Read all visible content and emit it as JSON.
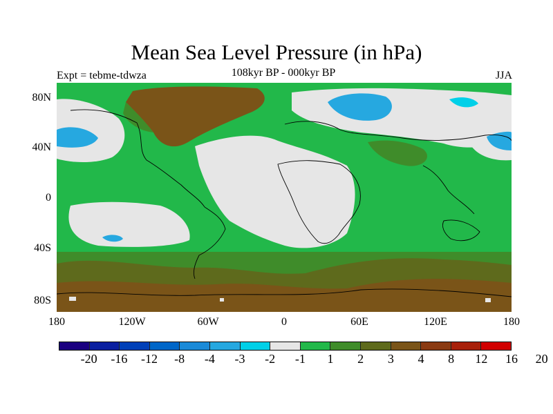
{
  "figure": {
    "title": "Mean Sea Level Pressure (in hPa)",
    "left_label": "Expt = tebme-tdwza",
    "center_label": "108kyr BP - 000kyr BP",
    "right_label": "JJA"
  },
  "axes": {
    "lat_labels": [
      "80N",
      "40N",
      "0",
      "40S",
      "80S"
    ],
    "lon_labels": [
      "180",
      "120W",
      "60W",
      "0",
      "60E",
      "120E",
      "180"
    ]
  },
  "colorbar": {
    "colors": [
      "#1a0080",
      "#0a1fa0",
      "#0040b8",
      "#0066c8",
      "#1a8ad8",
      "#26a8e0",
      "#00d0e8",
      "#e6e6e6",
      "#22b84a",
      "#3f8c2a",
      "#5e6a1c",
      "#7a5418",
      "#8a3a12",
      "#a8200a",
      "#d10000"
    ],
    "labels": [
      "-20",
      "-16",
      "-12",
      "-8",
      "-4",
      "-3",
      "-2",
      "-1",
      "1",
      "2",
      "3",
      "4",
      "8",
      "12",
      "16",
      "20"
    ]
  },
  "map_colors": {
    "neutral": "#e6e6e6",
    "light_green": "#22b84a",
    "mid_green": "#3f8c2a",
    "olive": "#5e6a1c",
    "brown": "#7a5418",
    "light_blue": "#26a8e0",
    "cyan": "#00d0e8"
  }
}
